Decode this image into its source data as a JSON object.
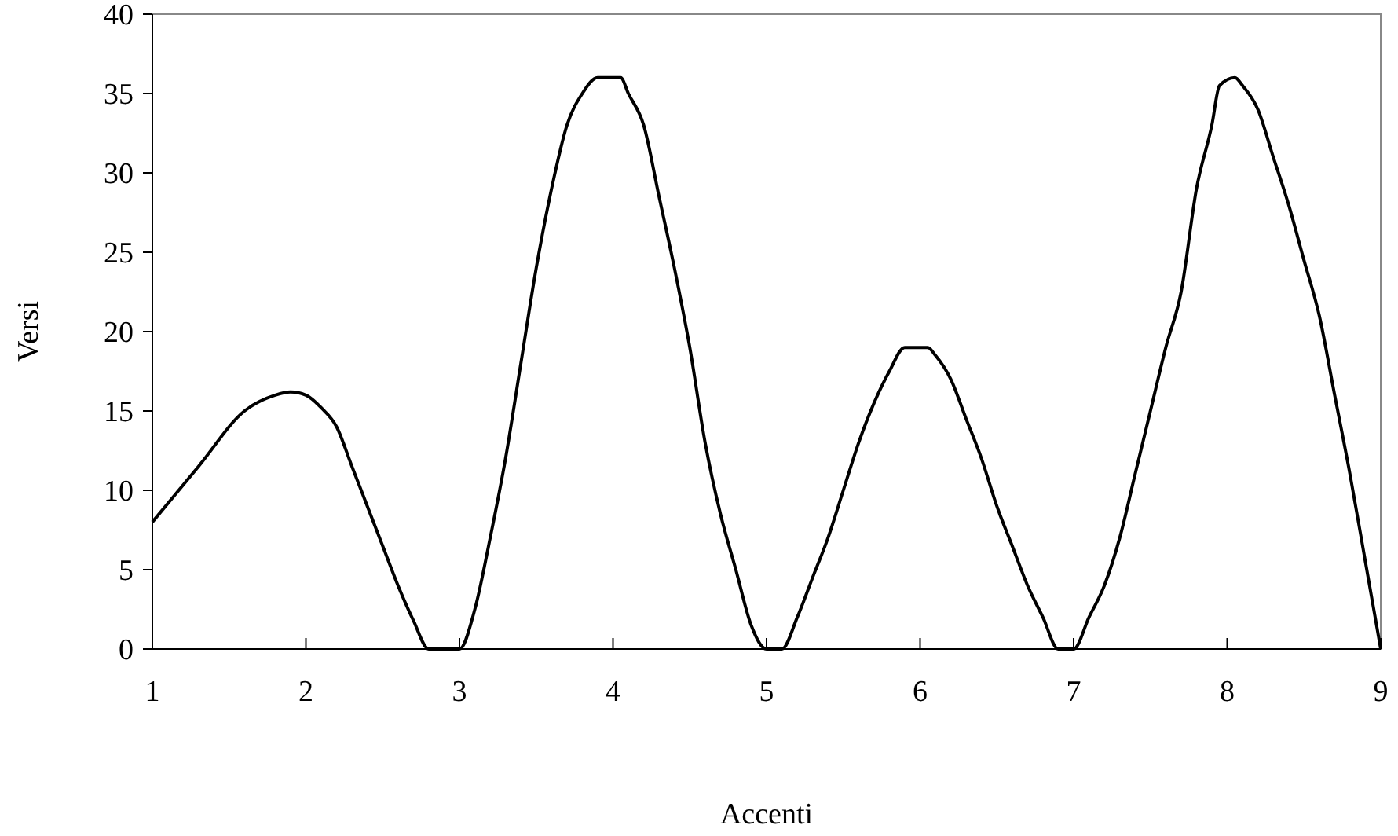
{
  "chart_data": {
    "type": "line",
    "xlabel": "Accenti",
    "ylabel": "Versi",
    "xlim": [
      1,
      9
    ],
    "xticks": [
      1,
      2,
      3,
      4,
      5,
      6,
      7,
      8,
      9
    ],
    "ylim": [
      0,
      40
    ],
    "yticks": [
      0,
      5,
      10,
      15,
      20,
      25,
      30,
      35,
      40
    ],
    "grid": false,
    "marker": "none",
    "line_style": "solid",
    "series": [
      {
        "color": "#000000",
        "x": [
          1,
          1.3,
          1.6,
          1.8,
          1.9,
          2.0,
          2.1,
          2.2,
          2.3,
          2.4,
          2.5,
          2.6,
          2.7,
          2.8,
          2.9,
          3.0,
          3.1,
          3.2,
          3.3,
          3.4,
          3.5,
          3.6,
          3.7,
          3.8,
          3.9,
          3.95,
          4.05,
          4.1,
          4.2,
          4.3,
          4.4,
          4.5,
          4.6,
          4.7,
          4.8,
          4.9,
          5.0,
          5.1,
          5.2,
          5.3,
          5.4,
          5.5,
          5.6,
          5.7,
          5.8,
          5.9,
          5.95,
          6.05,
          6.1,
          6.2,
          6.3,
          6.4,
          6.5,
          6.6,
          6.7,
          6.8,
          6.9,
          7.0,
          7.1,
          7.2,
          7.3,
          7.4,
          7.5,
          7.6,
          7.7,
          7.8,
          7.9,
          7.95,
          8.05,
          8.1,
          8.2,
          8.3,
          8.4,
          8.5,
          8.6,
          8.7,
          8.8,
          8.9,
          9.0
        ],
        "values": [
          8,
          11.5,
          15,
          16,
          16.2,
          16,
          15.2,
          14,
          11.5,
          9,
          6.5,
          4,
          1.8,
          0,
          0,
          0,
          2.5,
          7,
          12,
          18,
          24,
          29,
          33,
          35,
          36,
          36,
          36,
          35,
          33,
          28.5,
          24,
          19,
          13,
          8.5,
          5,
          1.5,
          0,
          0,
          2,
          4.5,
          7,
          10,
          13,
          15.5,
          17.5,
          19,
          19,
          19,
          18.5,
          17,
          14.5,
          12,
          9,
          6.5,
          4,
          2,
          0,
          0,
          2,
          4,
          7,
          11,
          15,
          19,
          22.5,
          29,
          33,
          35.5,
          36,
          35.5,
          34,
          31,
          28,
          24.5,
          21,
          16,
          11,
          5.5,
          0
        ]
      }
    ]
  }
}
